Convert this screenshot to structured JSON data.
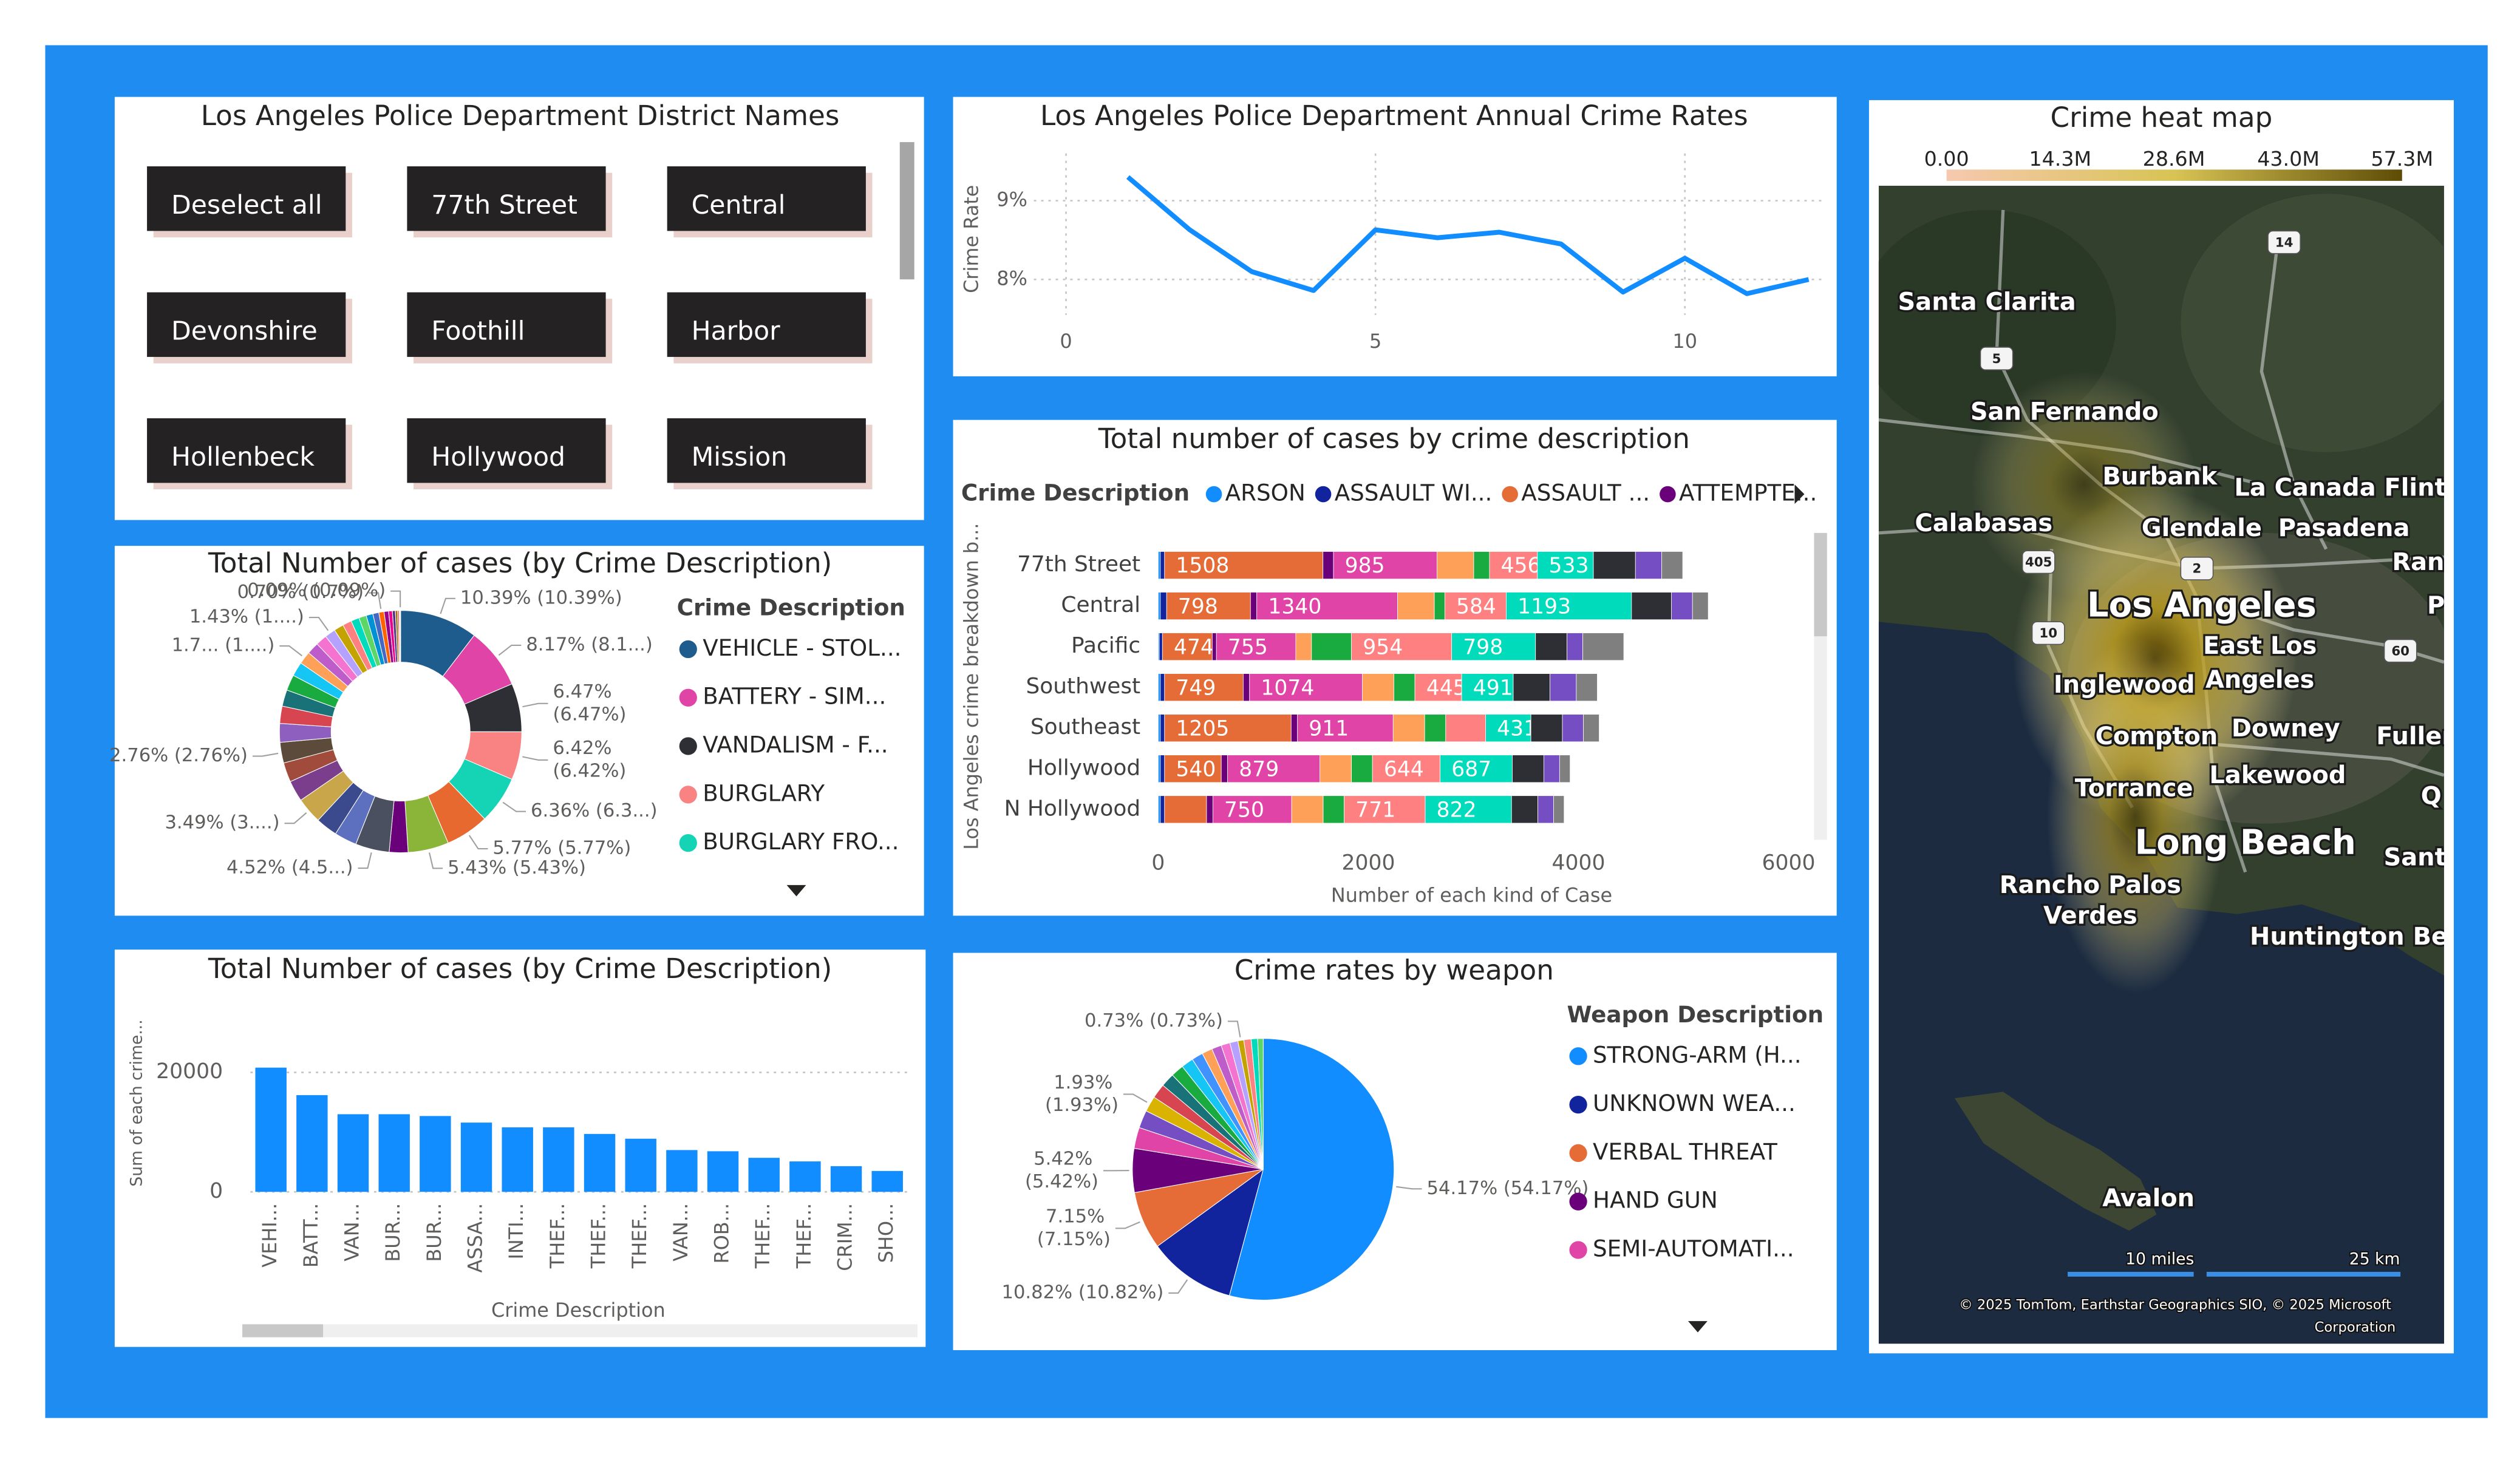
{
  "slicer": {
    "title": "Los Angeles Police Department District Names",
    "items": [
      "Deselect all",
      "77th Street",
      "Central",
      "Devonshire",
      "Foothill",
      "Harbor",
      "Hollenbeck",
      "Hollywood",
      "Mission"
    ]
  },
  "chart_data": [
    {
      "type": "line",
      "title": "Los Angeles Police Department Annual Crime Rates",
      "ylabel": "Crime Rate",
      "x": [
        1,
        2,
        3,
        4,
        5,
        6,
        7,
        8,
        9,
        10,
        11,
        12
      ],
      "values": [
        9.3,
        8.63,
        8.1,
        7.86,
        8.63,
        8.53,
        8.6,
        8.45,
        7.84,
        8.27,
        7.82,
        8.0
      ],
      "color": "#118dff",
      "xlim": [
        -0.52,
        12.27
      ],
      "xticks": [
        0,
        5,
        10
      ],
      "ylim": [
        7.55,
        9.6
      ],
      "yticks": [
        {
          "value": 8,
          "label": "8%"
        },
        {
          "value": 9,
          "label": "9%"
        }
      ],
      "grid": true
    },
    {
      "type": "donut",
      "title": "Total Number of cases (by Crime Description)",
      "legend_title": "Crime Description",
      "categories": [
        "VEHICLE - STOL...",
        "BATTERY - SIM...",
        "VANDALISM - F...",
        "BURGLARY",
        "BURGLARY FRO...",
        null,
        null,
        null,
        null,
        null,
        null,
        null,
        null,
        null,
        null,
        null,
        null,
        null,
        null,
        null,
        null,
        null,
        null,
        null,
        null,
        null,
        null,
        null,
        null,
        null,
        null,
        null,
        null,
        null,
        null,
        null,
        null,
        null
      ],
      "values": [
        10.39,
        8.17,
        6.47,
        6.42,
        6.36,
        5.77,
        5.43,
        2.5,
        4.52,
        3.0,
        2.9,
        3.49,
        2.8,
        2.6,
        2.76,
        2.5,
        2.3,
        2.2,
        2.1,
        1.9,
        1.7,
        1.6,
        1.5,
        1.43,
        1.3,
        1.2,
        1.1,
        1.0,
        0.9,
        0.8,
        0.7,
        0.6,
        0.5,
        0.4,
        0.3,
        0.2,
        0.1,
        0.09
      ],
      "value_labels": [
        "10.39% (10.39%)",
        "8.17% (8.1...)",
        "6.47% (6.47%)",
        "6.42% (6.42%)",
        "6.36% (6.3...)",
        "5.77% (5.77%)",
        "5.43% (5.43%)",
        null,
        "4.52% (4.5...)",
        null,
        null,
        "3.49% (3....)",
        null,
        null,
        "2.76% (2.76%)",
        null,
        null,
        null,
        null,
        null,
        "1.7... (1....)",
        null,
        null,
        "1.43% (1....)",
        null,
        null,
        null,
        null,
        null,
        null,
        "0.70% (0.7%)",
        null,
        null,
        null,
        null,
        null,
        null,
        "0.09% (0.09%)"
      ],
      "colors": [
        "#1f5c8e",
        "#e044a7",
        "#2e2f35",
        "#f98282",
        "#14d4b5",
        "#e8692f",
        "#8ab538",
        "#6b007b",
        "#4a5060",
        "#5d6fbf",
        "#3b4a8c",
        "#c9a64a",
        "#7a3e8c",
        "#a14b3c",
        "#5c4a3a",
        "#8e5fbf",
        "#d64550",
        "#197278",
        "#1aab40",
        "#15c6f4",
        "#ffa058",
        "#be5dc9",
        "#f472d0",
        "#b5a1ff",
        "#c4a200",
        "#ff8080",
        "#00dbbc",
        "#5bd667",
        "#0091d5",
        "#4668c5",
        "#ff6300",
        "#99008a",
        "#ec008c",
        "#533285",
        "#99700a",
        "#ff4141",
        "#1f9a85",
        "#25891c"
      ]
    },
    {
      "type": "bar",
      "title": "Total Number of cases (by Crime Description)",
      "ylabel": "Sum of each crime...",
      "xlabel": "Crime Description",
      "categories": [
        "VEHI...",
        "BATT...",
        "VAN...",
        "BUR...",
        "BUR...",
        "ASSA...",
        "INTI...",
        "THEF...",
        "THEF...",
        "THEF...",
        "VAN...",
        "ROB...",
        "THEF...",
        "THEF...",
        "CRIM...",
        "SHO..."
      ],
      "values": [
        20800,
        16200,
        13000,
        13000,
        12700,
        11600,
        10800,
        10800,
        9700,
        8900,
        7000,
        6800,
        5700,
        5100,
        4300,
        3500
      ],
      "color": "#118dff",
      "ylim": [
        0,
        26500
      ],
      "yticks": [
        0,
        20000
      ],
      "grid": true
    },
    {
      "type": "stacked_bar",
      "title": "Total number of cases by crime description",
      "legend_title": "Crime Description",
      "ylabel": "Los Angeles crime breakdown b...",
      "xlabel": "Number of each kind of Case",
      "categories": [
        "77th Street",
        "Central",
        "Pacific",
        "Southwest",
        "Southeast",
        "Hollywood",
        "N Hollywood"
      ],
      "xlim": [
        0,
        6350
      ],
      "xticks": [
        0,
        2000,
        4000,
        6000
      ],
      "series": [
        {
          "name": "ARSON",
          "color": "#118dff",
          "values": [
            20,
            20,
            10,
            20,
            20,
            20,
            20
          ]
        },
        {
          "name": "ASSAULT WI...",
          "color": "#12239e",
          "values": [
            40,
            60,
            30,
            40,
            40,
            40,
            40
          ]
        },
        {
          "name": "ASSAULT ...",
          "color": "#e66c37",
          "values": [
            1508,
            798,
            474,
            749,
            1205,
            540,
            400
          ]
        },
        {
          "name": "ATTEMPTE...",
          "color": "#6b007b",
          "values": [
            100,
            60,
            40,
            60,
            60,
            60,
            60
          ]
        },
        {
          "name": null,
          "color": "#e044a7",
          "values": [
            985,
            1340,
            755,
            1074,
            911,
            879,
            750
          ]
        },
        {
          "name": null,
          "color": "#ffa058",
          "values": [
            350,
            350,
            150,
            300,
            300,
            300,
            300
          ]
        },
        {
          "name": null,
          "color": "#1aab40",
          "values": [
            150,
            100,
            380,
            200,
            200,
            200,
            200
          ]
        },
        {
          "name": null,
          "color": "#ff8080",
          "values": [
            456,
            584,
            954,
            445,
            380,
            644,
            771
          ]
        },
        {
          "name": null,
          "color": "#00dbbc",
          "values": [
            533,
            1193,
            798,
            491,
            431,
            687,
            822
          ]
        },
        {
          "name": null,
          "color": "#2e2f35",
          "values": [
            400,
            380,
            300,
            350,
            300,
            300,
            250
          ]
        },
        {
          "name": null,
          "color": "#744ec2",
          "values": [
            250,
            200,
            150,
            250,
            200,
            150,
            150
          ]
        },
        {
          "name": null,
          "color": "#7f7f7f",
          "values": [
            200,
            150,
            390,
            200,
            150,
            100,
            100
          ]
        }
      ]
    },
    {
      "type": "pie",
      "title": "Crime rates by weapon",
      "legend_title": "Weapon Description",
      "categories": [
        "STRONG-ARM (H...",
        "UNKNOWN WEA...",
        "VERBAL THREAT",
        "HAND GUN",
        "SEMI-AUTOMATI...",
        null,
        null,
        null,
        null,
        null,
        null,
        null,
        null,
        null,
        null,
        null,
        null,
        null,
        null,
        null
      ],
      "values": [
        54.17,
        10.82,
        7.15,
        5.42,
        2.6,
        2.2,
        1.93,
        1.8,
        1.7,
        1.6,
        1.5,
        1.4,
        1.3,
        1.2,
        1.1,
        1.0,
        0.73,
        0.9,
        0.8,
        0.68
      ],
      "value_labels": [
        "54.17% (54.17%)",
        "10.82% (10.82%)",
        "7.15% (7.15%)",
        "5.42% (5.42%)",
        null,
        null,
        "1.93% (1.93%)",
        null,
        null,
        null,
        null,
        null,
        null,
        null,
        null,
        null,
        "0.73% (0.73%)",
        null,
        null,
        null
      ],
      "colors": [
        "#118dff",
        "#12239e",
        "#e66c37",
        "#6b007b",
        "#e044a7",
        "#744ec2",
        "#d9b300",
        "#d64550",
        "#197278",
        "#1aab40",
        "#15c6f4",
        "#4092ff",
        "#ffa058",
        "#be5dc9",
        "#f472d0",
        "#b5a1ff",
        "#c4a200",
        "#ff8080",
        "#00dbbc",
        "#5bd667"
      ]
    }
  ],
  "map": {
    "title": "Crime heat map",
    "colorbar": {
      "lim": [
        0,
        57300000
      ],
      "ticks": [
        {
          "value": 0,
          "label": "0.00"
        },
        {
          "value": 14300000,
          "label": "14.3M"
        },
        {
          "value": 28600000,
          "label": "28.6M"
        },
        {
          "value": 43000000,
          "label": "43.0M"
        },
        {
          "value": 57300000,
          "label": "57.3M"
        }
      ]
    },
    "places": [
      "Santa Clarita",
      "San Fernando",
      "Burbank",
      "La Canada Flintri",
      "Calabasas",
      "Glendale",
      "Pasadena",
      "Ran",
      "Los Angeles",
      "East Los",
      "Angeles",
      "Inglewood",
      "Compton",
      "Downey",
      "Fuller",
      "Torrance",
      "Lakewood",
      "Long Beach",
      "Rancho Palos",
      "Verdes",
      "Huntington Be",
      "Avalon",
      "P",
      "Q",
      "Sant"
    ],
    "shields": [
      "14",
      "5",
      "405",
      "2",
      "10",
      "60"
    ],
    "scale": [
      "10 miles",
      "25 km"
    ],
    "attribution": "© 2025 TomTom, Earthstar Geographics SIO, © 2025 Microsoft Corporation"
  }
}
